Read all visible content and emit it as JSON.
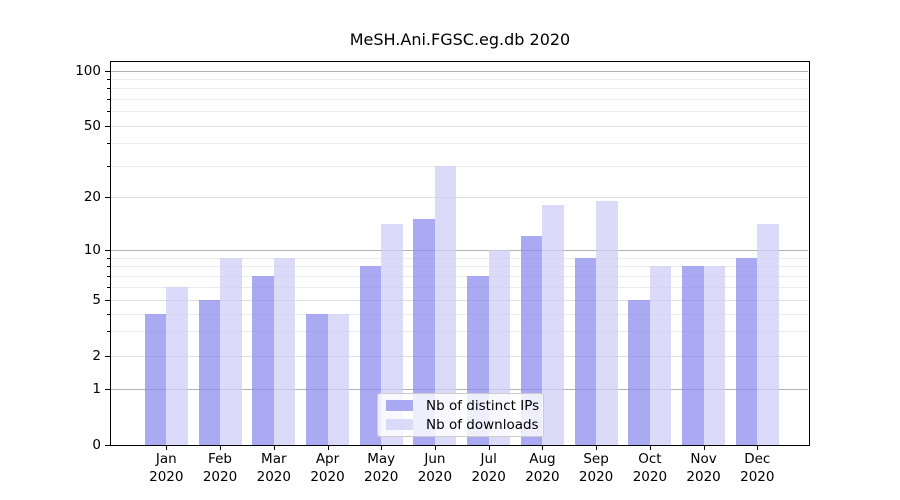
{
  "chart_data": {
    "type": "bar",
    "title": "MeSH.Ani.FGSC.eg.db 2020",
    "months": [
      "Jan",
      "Feb",
      "Mar",
      "Apr",
      "May",
      "Jun",
      "Jul",
      "Aug",
      "Sep",
      "Oct",
      "Nov",
      "Dec"
    ],
    "year": "2020",
    "series": [
      {
        "name": "Nb of distinct IPs",
        "color": "#8989ef",
        "opacity": 0.72,
        "values": [
          4,
          5,
          7,
          4,
          8,
          15,
          7,
          12,
          9,
          5,
          8,
          9
        ]
      },
      {
        "name": "Nb of downloads",
        "color": "#cdcdf6",
        "opacity": 0.72,
        "values": [
          6,
          9,
          9,
          4,
          14,
          30,
          10,
          18,
          19,
          8,
          8,
          14
        ]
      }
    ],
    "y_axis": {
      "scale": "log-like",
      "major_ticks": [
        100,
        50,
        20,
        10,
        5,
        2,
        1,
        0
      ],
      "decade_gridlines": [
        100,
        10,
        1
      ],
      "minor_ticks": [
        90,
        80,
        70,
        60,
        40,
        30,
        9,
        8,
        7,
        6,
        4,
        3
      ],
      "range": [
        0,
        110
      ]
    },
    "legend": {
      "position": "lower-center",
      "items": [
        "Nb of distinct IPs",
        "Nb of downloads"
      ]
    }
  }
}
